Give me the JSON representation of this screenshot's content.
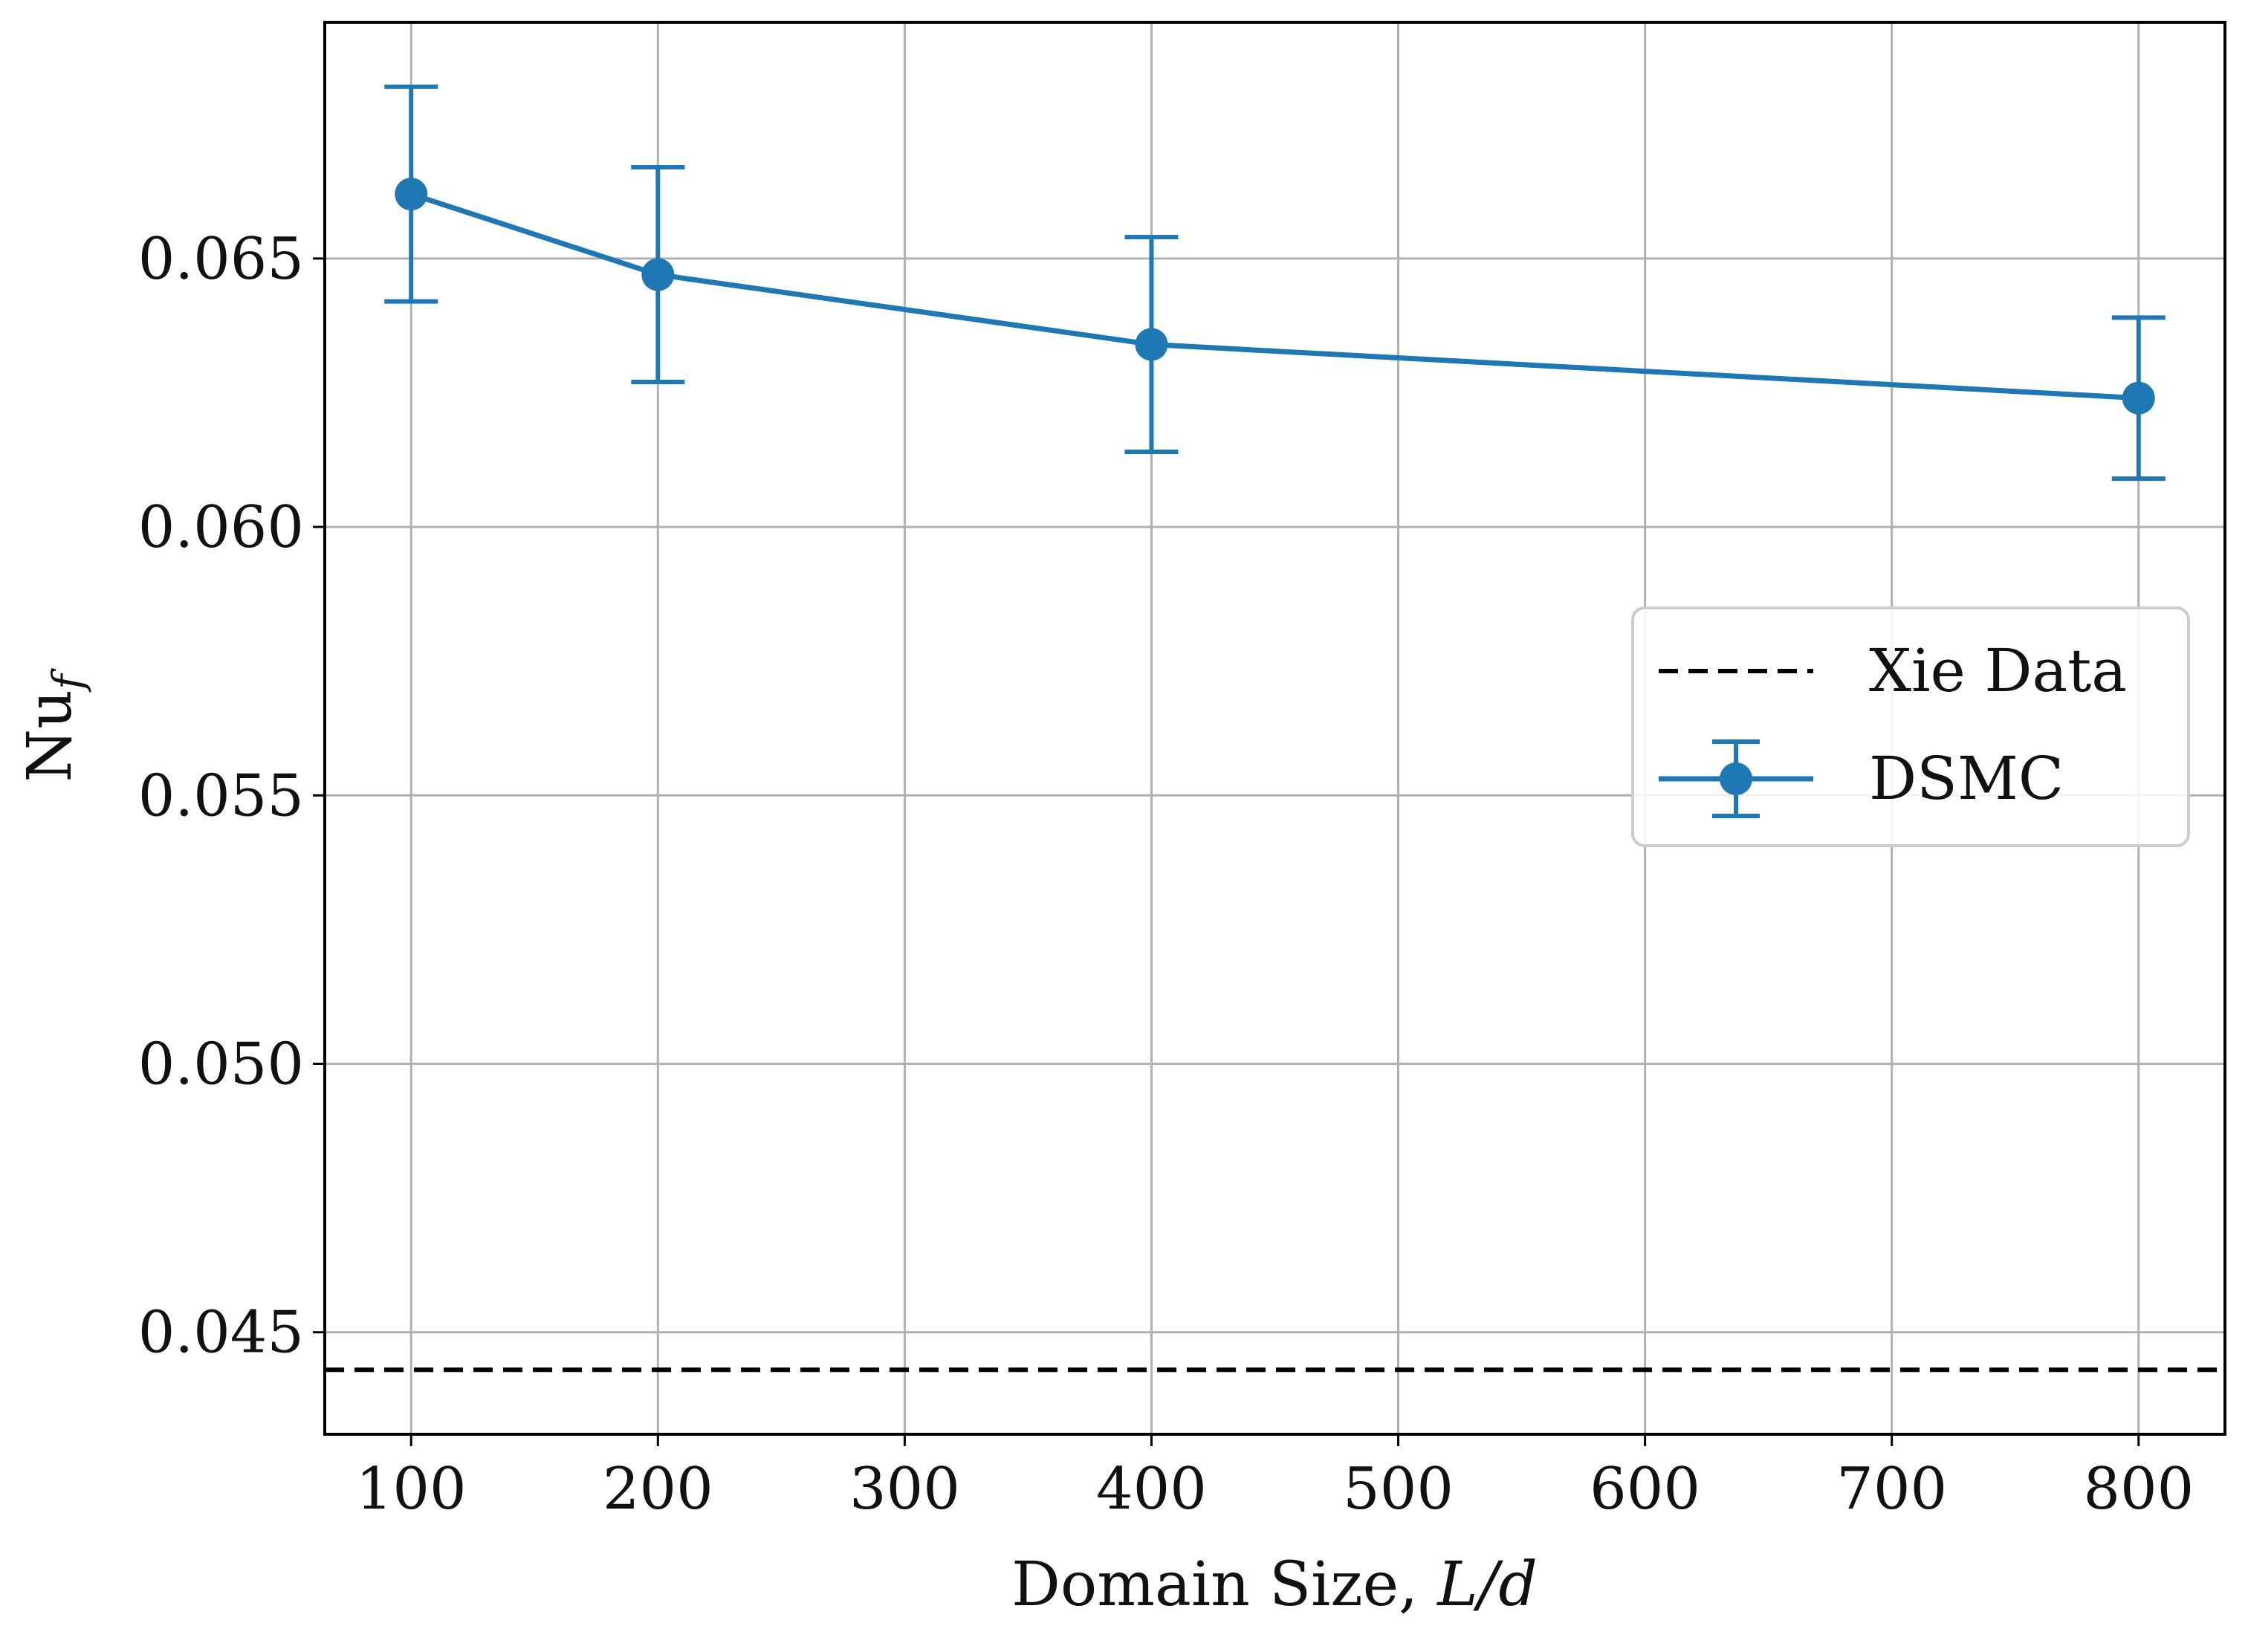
{
  "chart_data": {
    "type": "line",
    "title": "",
    "xlabel": "Domain Size, L/d",
    "xlabel_parts": {
      "text": "Domain Size, ",
      "math": "L/d"
    },
    "ylabel": "Nu_f",
    "ylabel_parts": {
      "base": "Nu",
      "subscript": "f"
    },
    "xlim": [
      65,
      835
    ],
    "ylim": [
      0.0431,
      0.0694
    ],
    "xticks": [
      100,
      200,
      300,
      400,
      500,
      600,
      700,
      800
    ],
    "xtick_labels": [
      "100",
      "200",
      "300",
      "400",
      "500",
      "600",
      "700",
      "800"
    ],
    "yticks": [
      0.045,
      0.05,
      0.055,
      0.06,
      0.065
    ],
    "ytick_labels": [
      "0.045",
      "0.050",
      "0.055",
      "0.060",
      "0.065"
    ],
    "grid": true,
    "legend_position": "center-right",
    "series": [
      {
        "name": "Xie Data",
        "kind": "hline",
        "style": "dashed",
        "color": "#000000",
        "y": 0.0443
      },
      {
        "name": "DSMC",
        "kind": "errorbar",
        "color": "#1f77b4",
        "x": [
          100,
          200,
          400,
          800
        ],
        "y": [
          0.0662,
          0.0647,
          0.0634,
          0.0624
        ],
        "yerr": [
          0.002,
          0.002,
          0.002,
          0.0015
        ]
      }
    ]
  }
}
